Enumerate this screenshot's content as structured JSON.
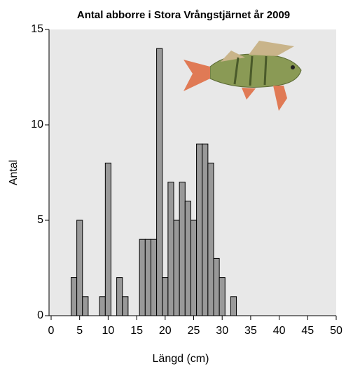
{
  "chart_data": {
    "type": "histogram",
    "title": "Antal abborre i Stora Vrångstjärnet år 2009",
    "x_label": "Längd (cm)",
    "y_label": "Antal",
    "bins": [
      3.5,
      4.5,
      5.5,
      6.5,
      7.5,
      8.5,
      9.5,
      10.5,
      11.5,
      12.5,
      13.5,
      14.5,
      15.5,
      16.5,
      17.5,
      18.5,
      19.5,
      20.5,
      21.5,
      22.5,
      23.5,
      24.5,
      25.5,
      26.5,
      27.5,
      28.5,
      29.5,
      30.5,
      31.5,
      32.5
    ],
    "values": [
      2,
      5,
      1,
      0,
      0,
      1,
      8,
      0,
      2,
      1,
      0,
      0,
      4,
      4,
      4,
      14,
      2,
      7,
      5,
      7,
      6,
      5,
      9,
      9,
      8,
      3,
      2,
      0,
      1
    ],
    "color": "#999999",
    "xlim": [
      0,
      50
    ],
    "xticks": [
      0,
      5,
      10,
      15,
      20,
      25,
      30,
      35,
      40,
      45,
      50
    ],
    "ylim": [
      0,
      15
    ],
    "yticks": [
      0,
      5,
      10,
      15
    ]
  }
}
